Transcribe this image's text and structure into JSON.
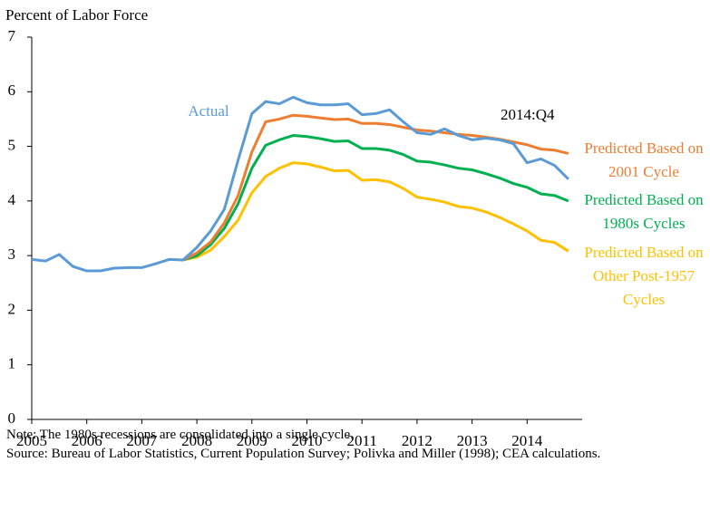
{
  "chart_data": {
    "type": "line",
    "y_label": "Percent of Labor Force",
    "annotation": "2014:Q4",
    "x": [
      2005,
      2005.25,
      2005.5,
      2005.75,
      2006,
      2006.25,
      2006.5,
      2006.75,
      2007,
      2007.25,
      2007.5,
      2007.75,
      2008,
      2008.25,
      2008.5,
      2008.75,
      2009,
      2009.25,
      2009.5,
      2009.75,
      2010,
      2010.25,
      2010.5,
      2010.75,
      2011,
      2011.25,
      2011.5,
      2011.75,
      2012,
      2012.25,
      2012.5,
      2012.75,
      2013,
      2013.25,
      2013.5,
      2013.75,
      2014,
      2014.25,
      2014.5,
      2014.75
    ],
    "xlim": [
      2005,
      2015
    ],
    "xticks": [
      2005,
      2006,
      2007,
      2008,
      2009,
      2010,
      2011,
      2012,
      2013,
      2014
    ],
    "ylim": [
      0,
      7
    ],
    "yticks": [
      0,
      1,
      2,
      3,
      4,
      5,
      6,
      7
    ],
    "series": [
      {
        "name": "Actual",
        "color": "#5b9bd5",
        "values": [
          2.93,
          2.9,
          3.02,
          2.8,
          2.72,
          2.72,
          2.77,
          2.78,
          2.78,
          2.85,
          2.93,
          2.92,
          3.15,
          3.45,
          3.85,
          4.75,
          5.6,
          5.82,
          5.78,
          5.9,
          5.8,
          5.76,
          5.76,
          5.78,
          5.58,
          5.6,
          5.67,
          5.45,
          5.25,
          5.22,
          5.32,
          5.2,
          5.12,
          5.15,
          5.12,
          5.05,
          4.7,
          4.77,
          4.65,
          4.4
        ]
      },
      {
        "name": "Predicted Based on 2001 Cycle",
        "color": "#ed7d31",
        "values": [
          null,
          null,
          null,
          null,
          null,
          null,
          null,
          null,
          null,
          null,
          null,
          2.92,
          3.05,
          3.25,
          3.6,
          4.1,
          4.9,
          5.45,
          5.5,
          5.57,
          5.55,
          5.52,
          5.49,
          5.5,
          5.42,
          5.42,
          5.4,
          5.35,
          5.3,
          5.28,
          5.25,
          5.22,
          5.2,
          5.17,
          5.13,
          5.08,
          5.03,
          4.95,
          4.93,
          4.87
        ]
      },
      {
        "name": "Predicted Based on 1980s Cycles",
        "color": "#00b050",
        "values": [
          null,
          null,
          null,
          null,
          null,
          null,
          null,
          null,
          null,
          null,
          null,
          2.92,
          3.0,
          3.2,
          3.5,
          3.95,
          4.6,
          5.02,
          5.12,
          5.2,
          5.18,
          5.14,
          5.09,
          5.1,
          4.96,
          4.96,
          4.93,
          4.85,
          4.73,
          4.71,
          4.66,
          4.6,
          4.57,
          4.5,
          4.42,
          4.32,
          4.25,
          4.13,
          4.1,
          4.0
        ]
      },
      {
        "name": "Predicted Based on Other Post-1957 Cycles",
        "color": "#ffc000",
        "values": [
          null,
          null,
          null,
          null,
          null,
          null,
          null,
          null,
          null,
          null,
          null,
          2.92,
          2.97,
          3.1,
          3.35,
          3.65,
          4.15,
          4.45,
          4.6,
          4.7,
          4.68,
          4.62,
          4.55,
          4.56,
          4.38,
          4.39,
          4.35,
          4.23,
          4.07,
          4.03,
          3.98,
          3.9,
          3.87,
          3.8,
          3.7,
          3.58,
          3.45,
          3.28,
          3.24,
          3.08
        ]
      }
    ],
    "notes": [
      "Note: The 1980s recessions are consolidated into a single cycle.",
      "Source: Bureau of Labor Statistics, Current Population Survey; Polivka and Miller (1998); CEA calculations."
    ]
  }
}
